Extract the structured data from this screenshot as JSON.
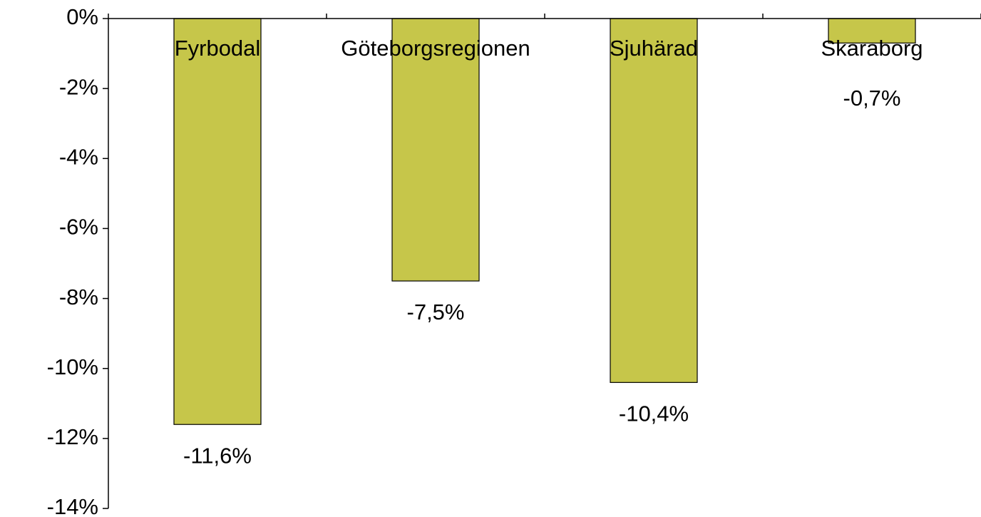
{
  "chart_data": {
    "type": "bar",
    "categories": [
      "Fyrbodal",
      "Göteborgsregionen",
      "Sjuhärad",
      "Skaraborg"
    ],
    "values": [
      -11.6,
      -7.5,
      -10.4,
      -0.7
    ],
    "value_labels": [
      "-11,6%",
      "-7,5%",
      "-10,4%",
      "-0,7%"
    ],
    "color": "#c6c64a",
    "ylim": [
      -14,
      0
    ],
    "yticks": [
      {
        "value": 0,
        "label": "0%"
      },
      {
        "value": -2,
        "label": "-2%"
      },
      {
        "value": -4,
        "label": "-4%"
      },
      {
        "value": -6,
        "label": "-6%"
      },
      {
        "value": -8,
        "label": "-8%"
      },
      {
        "value": -10,
        "label": "-10%"
      },
      {
        "value": -12,
        "label": "-12%"
      },
      {
        "value": -14,
        "label": "-14%"
      }
    ]
  }
}
